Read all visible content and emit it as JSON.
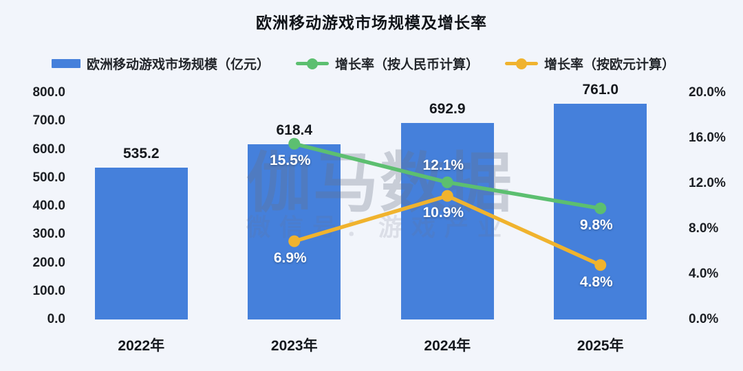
{
  "title": "欧洲移动游戏市场规模及增长率",
  "watermark": {
    "line1": "伽马数据",
    "line2": "微信号：游戏产业"
  },
  "colors": {
    "background": "#f2f5fb",
    "bar": "#4580db",
    "growth_cny": "#5cbf70",
    "growth_eur": "#f0b32e",
    "axis_text": "#1c1f24",
    "label_on_bar": "#ffffff"
  },
  "legend": [
    {
      "label": "欧洲移动游戏市场规模（亿元）",
      "type": "bar",
      "color": "#4580db"
    },
    {
      "label": "增长率（按人民币计算）",
      "type": "line",
      "color": "#5cbf70"
    },
    {
      "label": "增长率（按欧元计算）",
      "type": "line",
      "color": "#f0b32e"
    }
  ],
  "chart_data": {
    "type": "bar+line",
    "title": "欧洲移动游戏市场规模及增长率",
    "categories": [
      "2022年",
      "2023年",
      "2024年",
      "2025年"
    ],
    "bar_series": {
      "name": "欧洲移动游戏市场规模（亿元）",
      "axis": "left",
      "color": "#4580db",
      "values": [
        535.2,
        618.4,
        692.9,
        761.0
      ]
    },
    "line_series": [
      {
        "name": "增长率（按人民币计算）",
        "axis": "right",
        "color": "#5cbf70",
        "values": [
          null,
          15.5,
          12.1,
          9.8
        ],
        "label_positions": [
          null,
          "below",
          "above",
          "below"
        ]
      },
      {
        "name": "增长率（按欧元计算）",
        "axis": "right",
        "color": "#f0b32e",
        "values": [
          null,
          6.9,
          10.9,
          4.8
        ],
        "label_positions": [
          null,
          "below",
          "below",
          "below"
        ]
      }
    ],
    "left_axis": {
      "min": 0,
      "max": 800,
      "step": 100,
      "tick_labels": [
        "800.0",
        "700.0",
        "600.0",
        "500.0",
        "400.0",
        "300.0",
        "200.0",
        "100.0",
        "0.0"
      ]
    },
    "right_axis": {
      "min": 0,
      "max": 20,
      "step": 4,
      "tick_labels": [
        "20.0%",
        "16.0%",
        "12.0%",
        "8.0%",
        "4.0%",
        "0.0%"
      ]
    },
    "grid": false,
    "legend_position": "top"
  }
}
